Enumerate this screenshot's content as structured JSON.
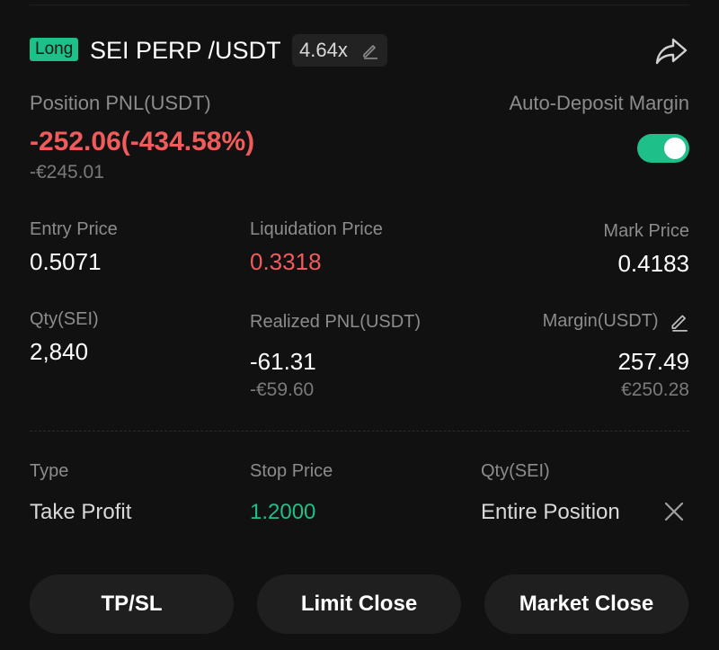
{
  "header": {
    "side_badge": "Long",
    "pair": "SEI PERP /USDT",
    "leverage": "4.64x"
  },
  "pnl": {
    "label": "Position PNL(USDT)",
    "value": "-252.06(-434.58%)",
    "fiat": "-€245.01"
  },
  "auto_deposit": {
    "label": "Auto-Deposit Margin",
    "enabled": true
  },
  "stats": {
    "entry_price": {
      "label": "Entry Price",
      "value": "0.5071"
    },
    "liquidation_price": {
      "label": "Liquidation Price",
      "value": "0.3318"
    },
    "mark_price": {
      "label": "Mark Price",
      "value": "0.4183"
    },
    "qty": {
      "label": "Qty(SEI)",
      "value": "2,840"
    },
    "realized_pnl": {
      "label": "Realized PNL(USDT)",
      "value": "-61.31",
      "fiat": "-€59.60"
    },
    "margin": {
      "label": "Margin(USDT)",
      "value": "257.49",
      "fiat": "€250.28"
    }
  },
  "order": {
    "type_label": "Type",
    "type_value": "Take Profit",
    "stop_label": "Stop Price",
    "stop_value": "1.2000",
    "qty_label": "Qty(SEI)",
    "qty_value": "Entire Position"
  },
  "actions": {
    "tpsl": "TP/SL",
    "limit_close": "Limit Close",
    "market_close": "Market Close"
  },
  "colors": {
    "accent_green": "#1fbf8a",
    "loss_red": "#f15b5b",
    "background": "#111111"
  }
}
